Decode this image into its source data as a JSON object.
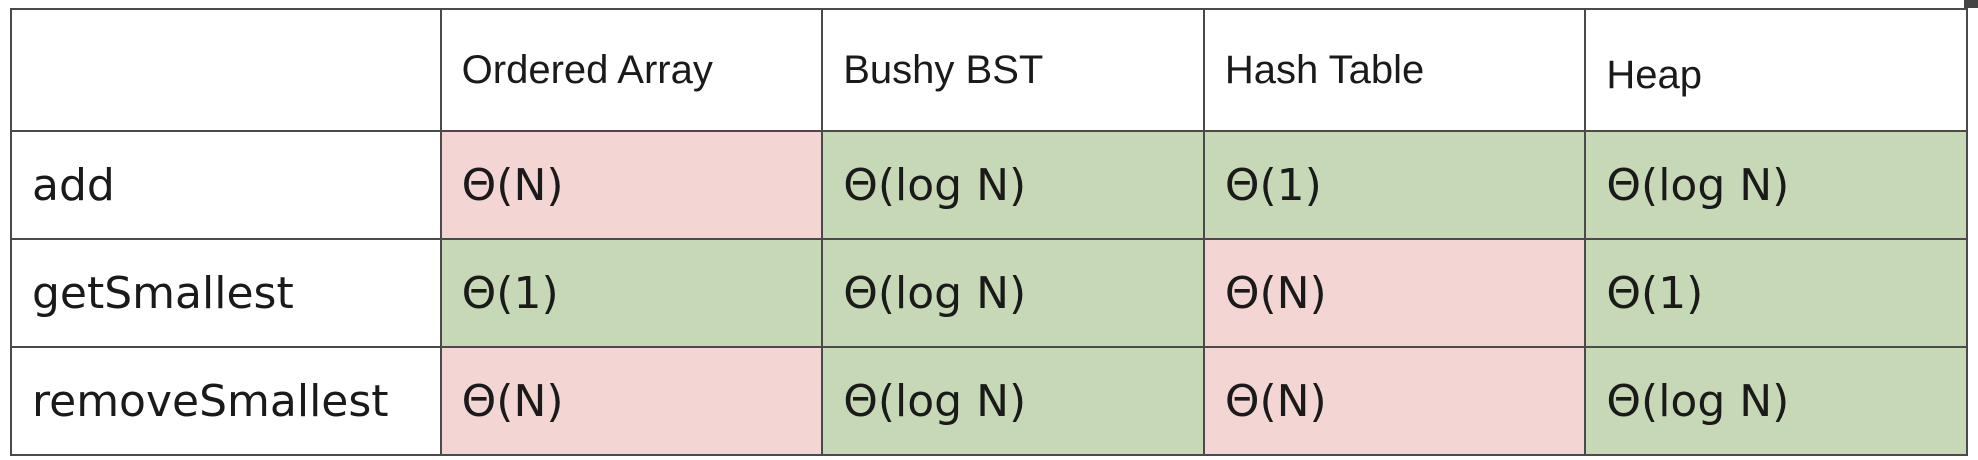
{
  "table": {
    "corner_header": "",
    "columns": [
      "Ordered Array",
      "Bushy BST",
      "Hash Table",
      "Heap"
    ],
    "rows": [
      {
        "operation": "add",
        "cells": [
          {
            "value": "Θ(N)",
            "status": "bad"
          },
          {
            "value": "Θ(log N)",
            "status": "good"
          },
          {
            "value": "Θ(1)",
            "status": "good"
          },
          {
            "value": "Θ(log N)",
            "status": "good"
          }
        ]
      },
      {
        "operation": "getSmallest",
        "cells": [
          {
            "value": "Θ(1)",
            "status": "good"
          },
          {
            "value": "Θ(log N)",
            "status": "good"
          },
          {
            "value": "Θ(N)",
            "status": "bad"
          },
          {
            "value": "Θ(1)",
            "status": "good"
          }
        ]
      },
      {
        "operation": "removeSmallest",
        "cells": [
          {
            "value": "Θ(N)",
            "status": "bad"
          },
          {
            "value": "Θ(log N)",
            "status": "good"
          },
          {
            "value": "Θ(N)",
            "status": "bad"
          },
          {
            "value": "Θ(log N)",
            "status": "good"
          }
        ]
      }
    ]
  },
  "colors": {
    "good": "#c6d8b5",
    "bad": "#f3d6d3",
    "border": "#4a4a4a"
  }
}
